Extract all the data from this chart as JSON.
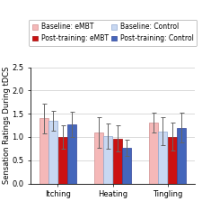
{
  "categories": [
    "Itching",
    "Heating",
    "Tingling"
  ],
  "groups": [
    "Baseline: eMBT",
    "Baseline: Control",
    "Post-training: eMBT",
    "Post-training: Control"
  ],
  "values": {
    "Itching": [
      1.4,
      1.35,
      1.0,
      1.27
    ],
    "Heating": [
      1.1,
      1.01,
      0.97,
      0.77
    ],
    "Tingling": [
      1.31,
      1.12,
      1.0,
      1.2
    ]
  },
  "errors": {
    "Itching": [
      0.32,
      0.22,
      0.25,
      0.28
    ],
    "Heating": [
      0.33,
      0.27,
      0.28,
      0.18
    ],
    "Tingling": [
      0.22,
      0.3,
      0.3,
      0.32
    ]
  },
  "colors": [
    "#f5b8b8",
    "#c8d8f2",
    "#cc1111",
    "#4466bb"
  ],
  "edge_colors": [
    "#d09090",
    "#90a8d0",
    "#991111",
    "#334499"
  ],
  "ylabel": "Sensation Ratings During tDCS",
  "ylim": [
    0,
    2.5
  ],
  "yticks": [
    0.0,
    0.5,
    1.0,
    1.5,
    2.0,
    2.5
  ],
  "legend_labels_col1": [
    "Baseline: eMBT",
    "Baseline: Control"
  ],
  "legend_labels_col2": [
    "Post-training: eMBT",
    "Post-training: Control"
  ],
  "bar_width": 0.16,
  "background_color": "#ffffff",
  "grid_color": "#cccccc",
  "label_fontsize": 6.0,
  "tick_fontsize": 6.0,
  "legend_fontsize": 5.5
}
